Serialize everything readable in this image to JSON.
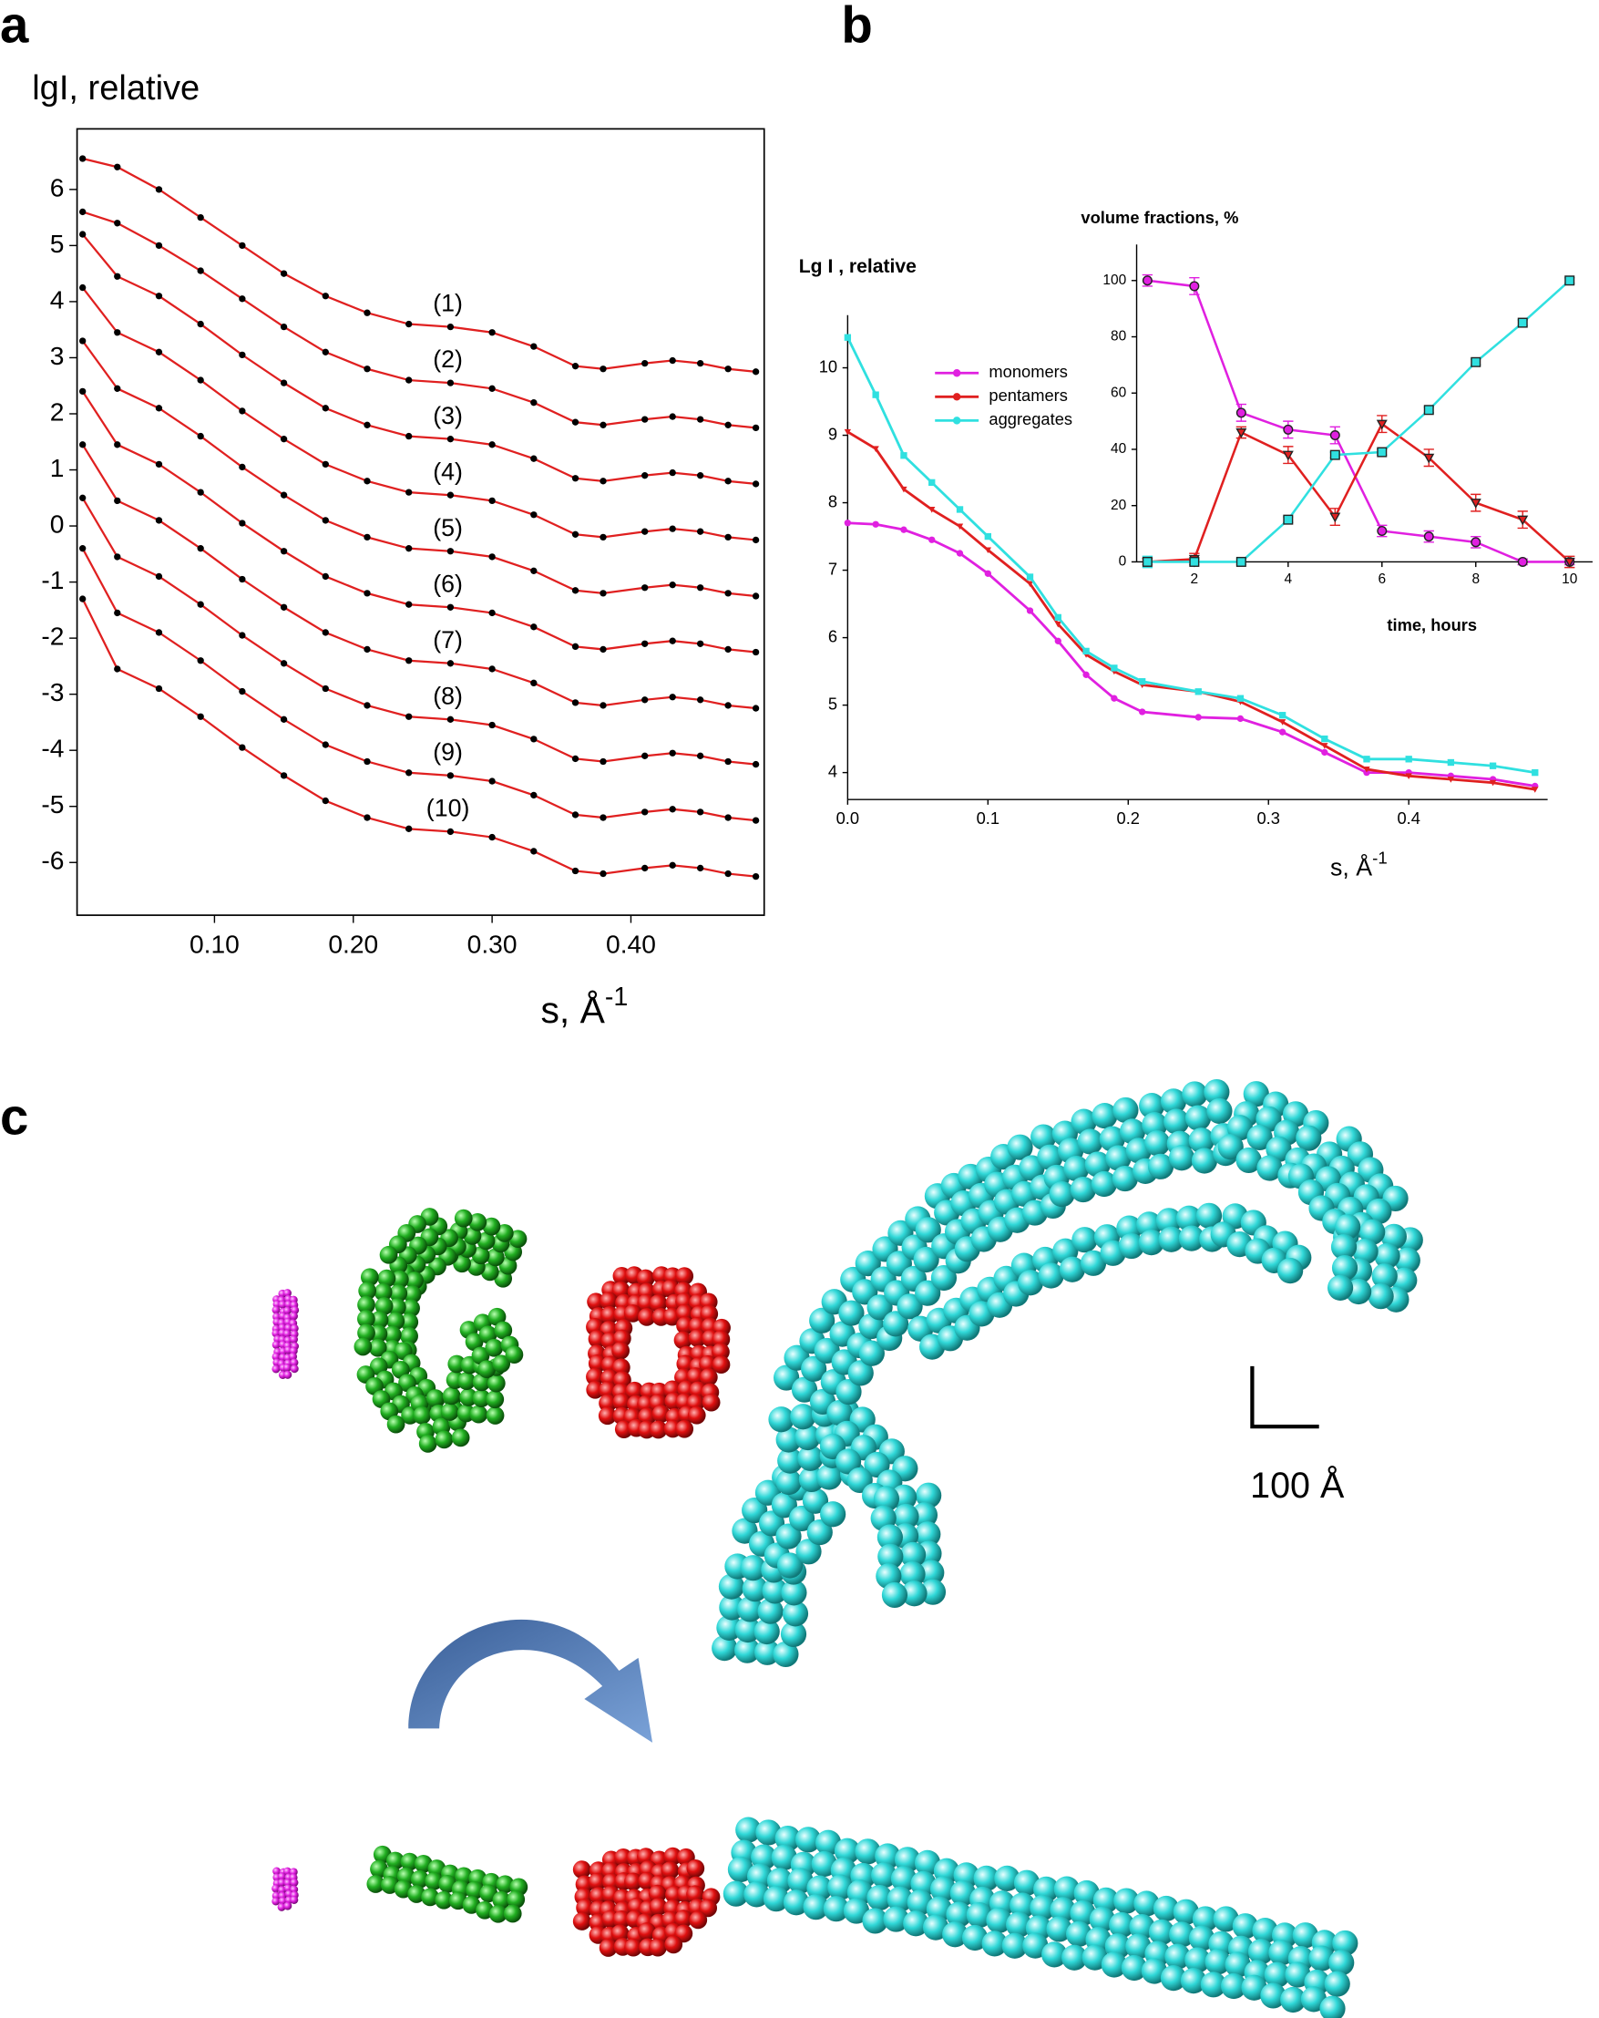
{
  "panels": [
    "a",
    "b",
    "c"
  ],
  "scale_bar": "100 Å",
  "chart_data": [
    {
      "type": "line",
      "title": "lgI, relative",
      "x_label": "s, Å",
      "x_label_sup": "-1",
      "marker_color": "#000000",
      "line_color": "#e02020",
      "x": [
        0.005,
        0.03,
        0.06,
        0.09,
        0.12,
        0.15,
        0.18,
        0.21,
        0.24,
        0.27,
        0.3,
        0.33,
        0.36,
        0.38,
        0.41,
        0.43,
        0.45,
        0.47,
        0.49
      ],
      "xlim": [
        0.001,
        0.496
      ],
      "ylim": [
        -6.94,
        7.08
      ],
      "xticks": [
        {
          "value": 0.1,
          "label": "0.10"
        },
        {
          "value": 0.2,
          "label": "0.20"
        },
        {
          "value": 0.3,
          "label": "0.30"
        },
        {
          "value": 0.4,
          "label": "0.40"
        }
      ],
      "yticks": [
        6,
        5,
        4,
        3,
        2,
        1,
        0,
        -1,
        -2,
        -3,
        -4,
        -5,
        -6
      ],
      "series": [
        {
          "name": "(1)",
          "values": [
            6.55,
            6.4,
            6.0,
            5.5,
            5.0,
            4.5,
            4.1,
            3.8,
            3.6,
            3.55,
            3.45,
            3.2,
            2.85,
            2.8,
            2.9,
            2.95,
            2.9,
            2.8,
            2.75
          ]
        },
        {
          "name": "(2)",
          "values": [
            5.6,
            5.4,
            5.0,
            4.55,
            4.05,
            3.55,
            3.1,
            2.8,
            2.6,
            2.55,
            2.45,
            2.2,
            1.85,
            1.8,
            1.9,
            1.95,
            1.9,
            1.8,
            1.75
          ]
        },
        {
          "name": "(3)",
          "values": [
            5.2,
            4.45,
            4.1,
            3.6,
            3.05,
            2.55,
            2.1,
            1.8,
            1.6,
            1.55,
            1.45,
            1.2,
            0.85,
            0.8,
            0.9,
            0.95,
            0.9,
            0.8,
            0.75
          ]
        },
        {
          "name": "(4)",
          "values": [
            4.25,
            3.45,
            3.1,
            2.6,
            2.05,
            1.55,
            1.1,
            0.8,
            0.6,
            0.55,
            0.45,
            0.2,
            -0.15,
            -0.2,
            -0.1,
            -0.05,
            -0.1,
            -0.2,
            -0.25
          ]
        },
        {
          "name": "(5)",
          "values": [
            3.3,
            2.45,
            2.1,
            1.6,
            1.05,
            0.55,
            0.1,
            -0.2,
            -0.4,
            -0.45,
            -0.55,
            -0.8,
            -1.15,
            -1.2,
            -1.1,
            -1.05,
            -1.1,
            -1.2,
            -1.25
          ]
        },
        {
          "name": "(6)",
          "values": [
            2.4,
            1.45,
            1.1,
            0.6,
            0.05,
            -0.45,
            -0.9,
            -1.2,
            -1.4,
            -1.45,
            -1.55,
            -1.8,
            -2.15,
            -2.2,
            -2.1,
            -2.05,
            -2.1,
            -2.2,
            -2.25
          ]
        },
        {
          "name": "(7)",
          "values": [
            1.45,
            0.45,
            0.1,
            -0.4,
            -0.95,
            -1.45,
            -1.9,
            -2.2,
            -2.4,
            -2.45,
            -2.55,
            -2.8,
            -3.15,
            -3.2,
            -3.1,
            -3.05,
            -3.1,
            -3.2,
            -3.25
          ]
        },
        {
          "name": "(8)",
          "values": [
            0.5,
            -0.55,
            -0.9,
            -1.4,
            -1.95,
            -2.45,
            -2.9,
            -3.2,
            -3.4,
            -3.45,
            -3.55,
            -3.8,
            -4.15,
            -4.2,
            -4.1,
            -4.05,
            -4.1,
            -4.2,
            -4.25
          ]
        },
        {
          "name": "(9)",
          "values": [
            -0.4,
            -1.55,
            -1.9,
            -2.4,
            -2.95,
            -3.45,
            -3.9,
            -4.2,
            -4.4,
            -4.45,
            -4.55,
            -4.8,
            -5.15,
            -5.2,
            -5.1,
            -5.05,
            -5.1,
            -5.2,
            -5.25
          ]
        },
        {
          "name": "(10)",
          "values": [
            -1.3,
            -2.55,
            -2.9,
            -3.4,
            -3.95,
            -4.45,
            -4.9,
            -5.2,
            -5.4,
            -5.45,
            -5.55,
            -5.8,
            -6.15,
            -6.2,
            -6.1,
            -6.05,
            -6.1,
            -6.2,
            -6.25
          ]
        }
      ]
    },
    {
      "type": "line",
      "title": "Lg I , relative",
      "x_label": "s, Å",
      "x_label_sup": "-1",
      "x": [
        0,
        0.02,
        0.04,
        0.06,
        0.08,
        0.1,
        0.13,
        0.15,
        0.17,
        0.19,
        0.21,
        0.25,
        0.28,
        0.31,
        0.34,
        0.37,
        0.4,
        0.43,
        0.46,
        0.49
      ],
      "xlim": [
        0,
        0.499
      ],
      "ylim": [
        3.6,
        10.78
      ],
      "xticks": [
        {
          "value": 0,
          "label": "0.0"
        },
        0.1,
        0.2,
        0.3,
        0.4
      ],
      "yticks": [
        4,
        5,
        6,
        7,
        8,
        9,
        10
      ],
      "legend": "upper center",
      "series": [
        {
          "name": "monomers",
          "color": "#e020e0",
          "marker": "circle",
          "values": [
            7.7,
            7.68,
            7.6,
            7.45,
            7.25,
            6.95,
            6.4,
            5.95,
            5.45,
            5.1,
            4.9,
            4.82,
            4.8,
            4.6,
            4.3,
            4.0,
            4.0,
            3.95,
            3.9,
            3.8
          ]
        },
        {
          "name": "pentamers",
          "color": "#e02020",
          "marker": "triangle",
          "values": [
            9.05,
            8.8,
            8.2,
            7.9,
            7.65,
            7.3,
            6.8,
            6.2,
            5.75,
            5.5,
            5.3,
            5.2,
            5.05,
            4.75,
            4.4,
            4.05,
            3.95,
            3.9,
            3.85,
            3.75
          ]
        },
        {
          "name": "aggregates",
          "color": "#30e0e0",
          "marker": "square",
          "values": [
            10.45,
            9.6,
            8.7,
            8.3,
            7.9,
            7.5,
            6.9,
            6.3,
            5.8,
            5.55,
            5.35,
            5.2,
            5.1,
            4.85,
            4.5,
            4.2,
            4.2,
            4.15,
            4.1,
            4.0
          ]
        }
      ]
    },
    {
      "type": "line",
      "title": "volume fractions, %",
      "x_label": "time, hours",
      "x": [
        1,
        2,
        3,
        4,
        5,
        6,
        7,
        8,
        9,
        10
      ],
      "xlim": [
        0.77,
        10.49
      ],
      "ylim": [
        0,
        112.8
      ],
      "xticks": [
        2,
        4,
        6,
        8,
        10
      ],
      "yticks": [
        0,
        20,
        40,
        60,
        80,
        100
      ],
      "series": [
        {
          "color": "#e020e0",
          "marker": "circle",
          "values": [
            100,
            98,
            53,
            47,
            45,
            11,
            9,
            7,
            0,
            0
          ],
          "errors": [
            2,
            3,
            3,
            3,
            3,
            2,
            2,
            2,
            1,
            1
          ]
        },
        {
          "color": "#e02020",
          "marker": "triangle",
          "values": [
            0,
            1,
            46,
            38,
            16,
            49,
            37,
            21,
            15,
            0
          ],
          "errors": [
            1,
            2,
            2,
            3,
            3,
            3,
            3,
            3,
            3,
            2
          ]
        },
        {
          "color": "#30e0e0",
          "marker": "square",
          "values": [
            0,
            0,
            0,
            15,
            38,
            39,
            54,
            71,
            85,
            100
          ],
          "errors": [
            2,
            1,
            1,
            1,
            1,
            1,
            1,
            1,
            1,
            1
          ]
        }
      ]
    }
  ]
}
